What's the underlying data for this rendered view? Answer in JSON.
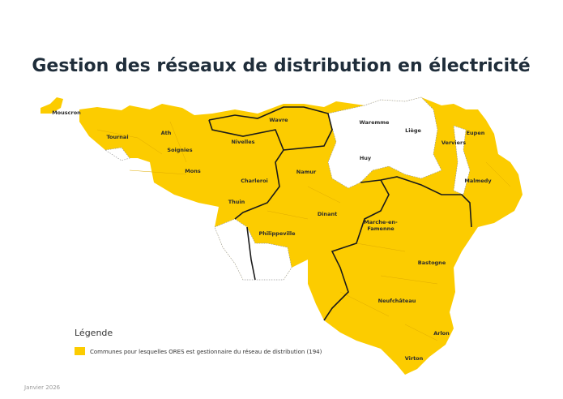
{
  "header": {
    "title": "Gestion des réseaux de distribution en électricité"
  },
  "map": {
    "ores_color": "#fccc00",
    "labels": [
      "Mouscron",
      "Tournai",
      "Ath",
      "Soignies",
      "Nivelles",
      "Wavre",
      "Waremme",
      "Liège",
      "Eupen",
      "Verviers",
      "Huy",
      "Namur",
      "Mons",
      "Charleroi",
      "Malmedy",
      "Thuin",
      "Dinant",
      "Marche-en-",
      "Famenne",
      "Philippeville",
      "Bastogne",
      "Neufchâteau",
      "Arlon",
      "Virton"
    ]
  },
  "legend": {
    "title": "Légende",
    "item": "Communes pour lesquelles ORES est gestionnaire du réseau de distribution (194)"
  },
  "footer": {
    "date": "Janvier 2026"
  }
}
